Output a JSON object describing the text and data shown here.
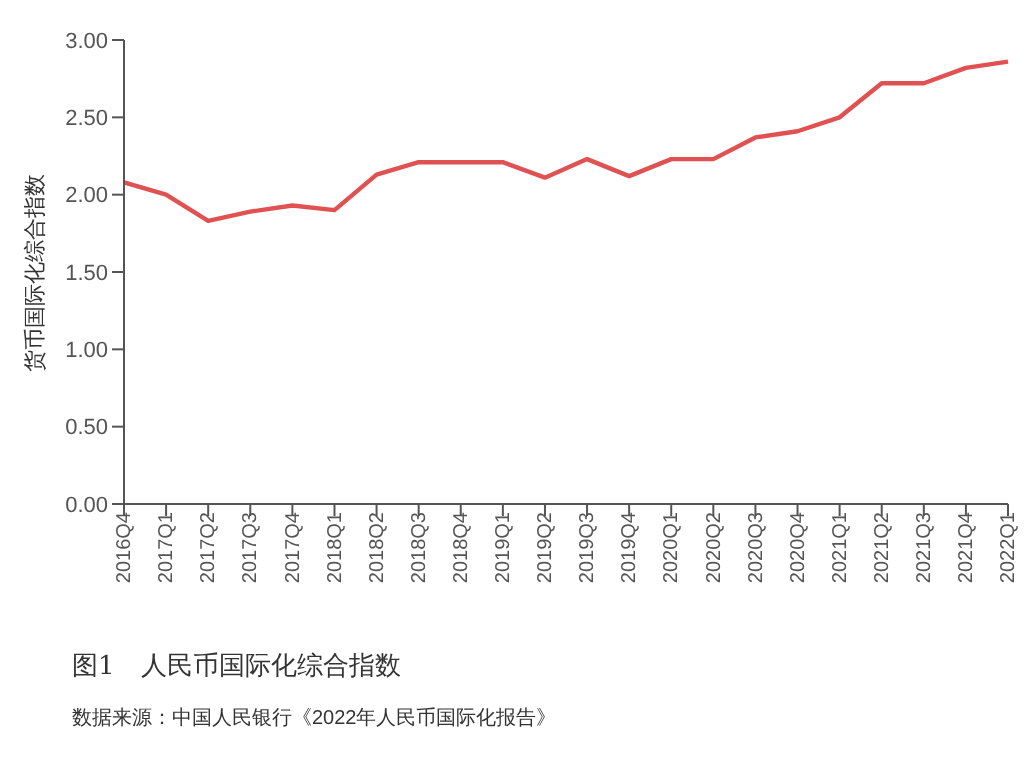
{
  "chart_data": {
    "type": "line",
    "title": "图1　人民币国际化综合指数",
    "ylabel": "货币国际化综合指数",
    "annotations": [
      "数据来源：中国人民银行《2022年人民币国际化报告》"
    ],
    "categories": [
      "2016Q4",
      "2017Q1",
      "2017Q2",
      "2017Q3",
      "2017Q4",
      "2018Q1",
      "2018Q2",
      "2018Q3",
      "2018Q4",
      "2019Q1",
      "2019Q2",
      "2019Q3",
      "2019Q4",
      "2020Q1",
      "2020Q2",
      "2020Q3",
      "2020Q4",
      "2021Q1",
      "2021Q2",
      "2021Q3",
      "2021Q4",
      "2022Q1"
    ],
    "series": [
      {
        "color": "#e05252",
        "values": [
          2.08,
          2.0,
          1.83,
          1.89,
          1.93,
          1.9,
          2.13,
          2.21,
          2.21,
          2.21,
          2.11,
          2.23,
          2.12,
          2.23,
          2.23,
          2.37,
          2.41,
          2.5,
          2.72,
          2.72,
          2.82,
          2.86
        ]
      }
    ],
    "ylim": [
      0,
      3
    ],
    "yticks": [
      {
        "value": 0,
        "label": "0.00"
      },
      {
        "value": 0.5,
        "label": "0.50"
      },
      {
        "value": 1,
        "label": "1.00"
      },
      {
        "value": 1.5,
        "label": "1.50"
      },
      {
        "value": 2,
        "label": "2.00"
      },
      {
        "value": 2.5,
        "label": "2.50"
      },
      {
        "value": 3,
        "label": "3.00"
      }
    ],
    "grid": false,
    "legend": false,
    "marker": "none",
    "line_style": "solid"
  }
}
